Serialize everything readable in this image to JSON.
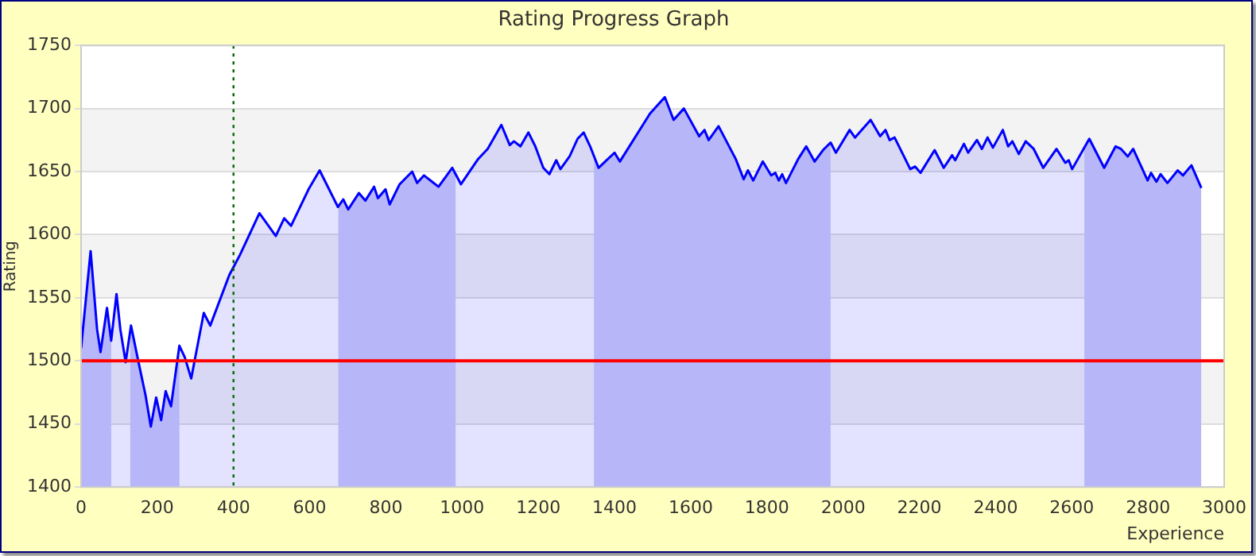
{
  "chart_data": {
    "type": "area",
    "title": "Rating Progress Graph",
    "xlabel": "Experience",
    "ylabel": "Rating",
    "xlim": [
      0,
      3000
    ],
    "xticks": [
      0,
      200,
      400,
      600,
      800,
      1000,
      1200,
      1400,
      1600,
      1800,
      2000,
      2200,
      2400,
      2600,
      2800,
      3000
    ],
    "ylim": [
      1400,
      1750
    ],
    "yticks": [
      1400,
      1450,
      1500,
      1550,
      1600,
      1650,
      1700,
      1750
    ],
    "grid": "y",
    "legend": false,
    "marker": "none",
    "line_style": "solid",
    "series": [
      {
        "color": "#0000ff",
        "x": [
          0,
          25,
          42,
          51,
          68,
          79,
          93,
          103,
          117,
          131,
          150,
          169,
          183,
          197,
          210,
          222,
          236,
          258,
          272,
          289,
          322,
          339,
          389,
          417,
          468,
          511,
          533,
          551,
          597,
          626,
          674,
          688,
          701,
          729,
          746,
          769,
          779,
          799,
          810,
          836,
          869,
          882,
          900,
          921,
          938,
          974,
          997,
          1042,
          1067,
          1103,
          1125,
          1136,
          1153,
          1174,
          1192,
          1213,
          1229,
          1247,
          1258,
          1282,
          1303,
          1319,
          1336,
          1358,
          1400,
          1414,
          1493,
          1532,
          1555,
          1582,
          1622,
          1636,
          1647,
          1673,
          1718,
          1739,
          1750,
          1764,
          1789,
          1811,
          1822,
          1831,
          1840,
          1850,
          1882,
          1903,
          1925,
          1947,
          1967,
          1981,
          2017,
          2031,
          2072,
          2097,
          2111,
          2122,
          2135,
          2176,
          2189,
          2203,
          2240,
          2264,
          2286,
          2294,
          2317,
          2328,
          2351,
          2364,
          2379,
          2393,
          2419,
          2433,
          2444,
          2461,
          2479,
          2500,
          2525,
          2560,
          2583,
          2592,
          2601,
          2646,
          2685,
          2715,
          2729,
          2747,
          2761,
          2799,
          2808,
          2822,
          2833,
          2851,
          2878,
          2892,
          2914,
          2940
        ],
        "values": [
          1510,
          1587,
          1525,
          1507,
          1542,
          1516,
          1553,
          1525,
          1499,
          1528,
          1500,
          1473,
          1448,
          1471,
          1453,
          1476,
          1464,
          1512,
          1503,
          1486,
          1538,
          1528,
          1568,
          1584,
          1617,
          1599,
          1613,
          1607,
          1636,
          1651,
          1622,
          1628,
          1620,
          1633,
          1627,
          1638,
          1629,
          1636,
          1624,
          1640,
          1650,
          1641,
          1647,
          1642,
          1638,
          1653,
          1640,
          1660,
          1668,
          1687,
          1671,
          1674,
          1670,
          1681,
          1670,
          1653,
          1648,
          1659,
          1652,
          1662,
          1676,
          1681,
          1670,
          1653,
          1665,
          1658,
          1696,
          1709,
          1691,
          1700,
          1678,
          1683,
          1675,
          1686,
          1660,
          1644,
          1651,
          1643,
          1658,
          1647,
          1649,
          1643,
          1648,
          1641,
          1660,
          1670,
          1658,
          1667,
          1673,
          1665,
          1683,
          1677,
          1691,
          1678,
          1683,
          1675,
          1677,
          1652,
          1654,
          1649,
          1667,
          1653,
          1663,
          1659,
          1672,
          1665,
          1675,
          1668,
          1677,
          1669,
          1683,
          1670,
          1674,
          1664,
          1674,
          1668,
          1653,
          1668,
          1657,
          1659,
          1652,
          1676,
          1653,
          1670,
          1668,
          1662,
          1668,
          1643,
          1649,
          1642,
          1648,
          1641,
          1651,
          1647,
          1655,
          1637
        ]
      }
    ],
    "bands": [
      {
        "axis": "x",
        "from": 0,
        "to": 79,
        "color": "#cdcdf8"
      },
      {
        "axis": "x",
        "from": 129,
        "to": 258,
        "color": "#cdcdf8"
      },
      {
        "axis": "x",
        "from": 675,
        "to": 983,
        "color": "#cdcdf8"
      },
      {
        "axis": "x",
        "from": 1346,
        "to": 1967,
        "color": "#cdcdf8"
      },
      {
        "axis": "x",
        "from": 2633,
        "to": 2940,
        "color": "#cdcdf8"
      }
    ],
    "ref_lines": [
      {
        "axis": "y",
        "value": 1500,
        "color": "#ff0000",
        "line_style": "solid"
      },
      {
        "axis": "x",
        "value": 400,
        "color": "#006600",
        "line_style": "dotted"
      }
    ]
  }
}
